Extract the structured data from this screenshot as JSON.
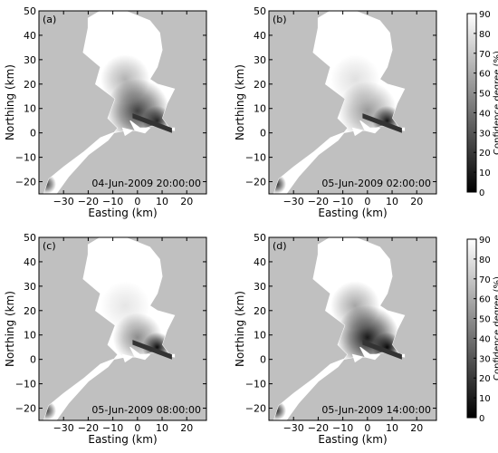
{
  "chart_data": [
    {
      "type": "heatmap",
      "panel": "(a)",
      "timestamp": "04-Jun-2009 20:00:00",
      "xlabel": "Easting (km)",
      "ylabel": "Northing (km)",
      "xlim": [
        -40,
        28
      ],
      "ylim": [
        -25,
        50
      ],
      "xticks": [
        "−30",
        "−20",
        "−10",
        "0",
        "10",
        "20"
      ],
      "yticks": [
        "−20",
        "−10",
        "0",
        "10",
        "20",
        "30",
        "40",
        "50"
      ],
      "blobs": [
        {
          "x": 0,
          "y": 9,
          "radius": 13,
          "intensity": 0.75
        },
        {
          "x": 8,
          "y": 5,
          "radius": 6,
          "intensity": 0.8
        },
        {
          "x": -5,
          "y": 22,
          "radius": 10,
          "intensity": 0.3
        },
        {
          "x": -37,
          "y": -21,
          "radius": 4,
          "intensity": 0.75
        }
      ]
    },
    {
      "type": "heatmap",
      "panel": "(b)",
      "timestamp": "05-Jun-2009 02:00:00",
      "xlabel": "Easting (km)",
      "ylabel": "Northing (km)",
      "xlim": [
        -40,
        28
      ],
      "ylim": [
        -25,
        50
      ],
      "xticks": [
        "−30",
        "−20",
        "−10",
        "0",
        "10",
        "20"
      ],
      "yticks": [
        "−20",
        "−10",
        "0",
        "10",
        "20",
        "30",
        "40",
        "50"
      ],
      "blobs": [
        {
          "x": 0,
          "y": 9,
          "radius": 12,
          "intensity": 0.4
        },
        {
          "x": 8,
          "y": 5,
          "radius": 6,
          "intensity": 0.9
        },
        {
          "x": -5,
          "y": 22,
          "radius": 10,
          "intensity": 0.12
        },
        {
          "x": -37,
          "y": -21,
          "radius": 4,
          "intensity": 0.85
        }
      ]
    },
    {
      "type": "heatmap",
      "panel": "(c)",
      "timestamp": "05-Jun-2009 08:00:00",
      "xlabel": "Easting (km)",
      "ylabel": "Northing (km)",
      "xlim": [
        -40,
        28
      ],
      "ylim": [
        -25,
        50
      ],
      "xticks": [
        "−30",
        "−20",
        "−10",
        "0",
        "10",
        "20"
      ],
      "yticks": [
        "−20",
        "−10",
        "0",
        "10",
        "20",
        "30",
        "40",
        "50"
      ],
      "blobs": [
        {
          "x": 0,
          "y": 9,
          "radius": 10,
          "intensity": 0.45
        },
        {
          "x": 8,
          "y": 5,
          "radius": 6,
          "intensity": 0.95
        },
        {
          "x": -5,
          "y": 22,
          "radius": 10,
          "intensity": 0.1
        },
        {
          "x": -37,
          "y": -21,
          "radius": 4,
          "intensity": 0.75
        }
      ]
    },
    {
      "type": "heatmap",
      "panel": "(d)",
      "timestamp": "05-Jun-2009 14:00:00",
      "xlabel": "Easting (km)",
      "ylabel": "Northing (km)",
      "xlim": [
        -40,
        28
      ],
      "ylim": [
        -25,
        50
      ],
      "xticks": [
        "−30",
        "−20",
        "−10",
        "0",
        "10",
        "20"
      ],
      "yticks": [
        "−20",
        "−10",
        "0",
        "10",
        "20",
        "30",
        "40",
        "50"
      ],
      "blobs": [
        {
          "x": 0,
          "y": 9,
          "radius": 13,
          "intensity": 0.9
        },
        {
          "x": 8,
          "y": 5,
          "radius": 6,
          "intensity": 0.95
        },
        {
          "x": -5,
          "y": 22,
          "radius": 10,
          "intensity": 0.35
        },
        {
          "x": -37,
          "y": -21,
          "radius": 4,
          "intensity": 0.85
        }
      ]
    }
  ],
  "colorbar": {
    "label": "Confidence degree (%)",
    "ticks": [
      "0",
      "10",
      "20",
      "30",
      "40",
      "50",
      "60",
      "70",
      "80",
      "90"
    ],
    "range": [
      0,
      90
    ]
  },
  "colors": {
    "land": "#c0c0c0",
    "water": "#ffffff",
    "dark": "#111111"
  }
}
